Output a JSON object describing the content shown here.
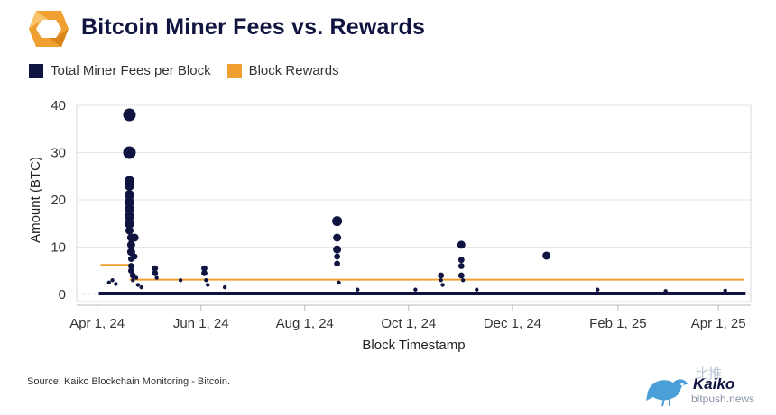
{
  "header": {
    "title": "Bitcoin Miner Fees vs. Rewards"
  },
  "legend": [
    {
      "label": "Total Miner Fees per Block",
      "color": "#0f1440"
    },
    {
      "label": "Block Rewards",
      "color": "#f0a030"
    }
  ],
  "footer": {
    "source": "Source: Kaiko Blockchain Monitoring - Bitcoin.",
    "brand": "Kaiko",
    "watermark_cn": "比推",
    "watermark_url": "bitpush.news"
  },
  "chart_data": {
    "type": "scatter",
    "title": "Bitcoin Miner Fees vs. Rewards",
    "xlabel": "Block Timestamp",
    "ylabel": "Amount (BTC)",
    "ylim": [
      0,
      40
    ],
    "yticks": [
      0,
      10,
      20,
      30,
      40
    ],
    "xticks": [
      "Apr 1, 24",
      "Jun 1, 24",
      "Aug 1, 24",
      "Oct 1, 24",
      "Dec 1, 24",
      "Feb 1, 25",
      "Apr 1, 25"
    ],
    "xrange": [
      "2024-03-20",
      "2025-04-20"
    ],
    "grid": true,
    "legend_position": "top-left",
    "series": [
      {
        "name": "Total Miner Fees per Block",
        "kind": "scatter",
        "color": "#0f1440",
        "points": [
          [
            "2024-04-08",
            2.5
          ],
          [
            "2024-04-10",
            3.0
          ],
          [
            "2024-04-12",
            2.2
          ],
          [
            "2024-04-20",
            38.0
          ],
          [
            "2024-04-20",
            30.0
          ],
          [
            "2024-04-20",
            24.0
          ],
          [
            "2024-04-20",
            23.0
          ],
          [
            "2024-04-20",
            21.0
          ],
          [
            "2024-04-20",
            19.5
          ],
          [
            "2024-04-20",
            18.0
          ],
          [
            "2024-04-20",
            16.5
          ],
          [
            "2024-04-20",
            15.0
          ],
          [
            "2024-04-20",
            13.5
          ],
          [
            "2024-04-21",
            12.0
          ],
          [
            "2024-04-21",
            10.5
          ],
          [
            "2024-04-21",
            9.0
          ],
          [
            "2024-04-21",
            7.5
          ],
          [
            "2024-04-21",
            6.0
          ],
          [
            "2024-04-21",
            5.0
          ],
          [
            "2024-04-22",
            4.0
          ],
          [
            "2024-04-22",
            3.0
          ],
          [
            "2024-04-23",
            12.0
          ],
          [
            "2024-04-23",
            8.0
          ],
          [
            "2024-04-24",
            3.5
          ],
          [
            "2024-04-25",
            2.0
          ],
          [
            "2024-04-27",
            1.5
          ],
          [
            "2024-05-05",
            5.5
          ],
          [
            "2024-05-05",
            4.5
          ],
          [
            "2024-05-06",
            3.5
          ],
          [
            "2024-05-20",
            3.0
          ],
          [
            "2024-06-03",
            5.5
          ],
          [
            "2024-06-03",
            4.5
          ],
          [
            "2024-06-04",
            3.0
          ],
          [
            "2024-06-05",
            2.0
          ],
          [
            "2024-06-15",
            1.5
          ],
          [
            "2024-08-20",
            15.5
          ],
          [
            "2024-08-20",
            12.0
          ],
          [
            "2024-08-20",
            9.5
          ],
          [
            "2024-08-20",
            8.0
          ],
          [
            "2024-08-20",
            6.5
          ],
          [
            "2024-08-21",
            2.5
          ],
          [
            "2024-09-01",
            1.0
          ],
          [
            "2024-10-05",
            1.0
          ],
          [
            "2024-10-20",
            4.0
          ],
          [
            "2024-10-20",
            3.0
          ],
          [
            "2024-10-21",
            2.0
          ],
          [
            "2024-11-01",
            10.5
          ],
          [
            "2024-11-01",
            7.3
          ],
          [
            "2024-11-01",
            6.0
          ],
          [
            "2024-11-01",
            4.0
          ],
          [
            "2024-11-02",
            3.0
          ],
          [
            "2024-11-10",
            1.0
          ],
          [
            "2024-12-21",
            8.2
          ],
          [
            "2025-01-20",
            1.0
          ],
          [
            "2025-03-01",
            0.7
          ],
          [
            "2025-04-05",
            0.8
          ]
        ]
      },
      {
        "name": "Block Rewards",
        "kind": "step",
        "color": "#f0a030",
        "steps": [
          {
            "from": "2024-04-03",
            "to": "2024-04-20",
            "value": 6.25
          },
          {
            "from": "2024-04-20",
            "to": "2025-04-16",
            "value": 3.125
          }
        ]
      }
    ]
  }
}
